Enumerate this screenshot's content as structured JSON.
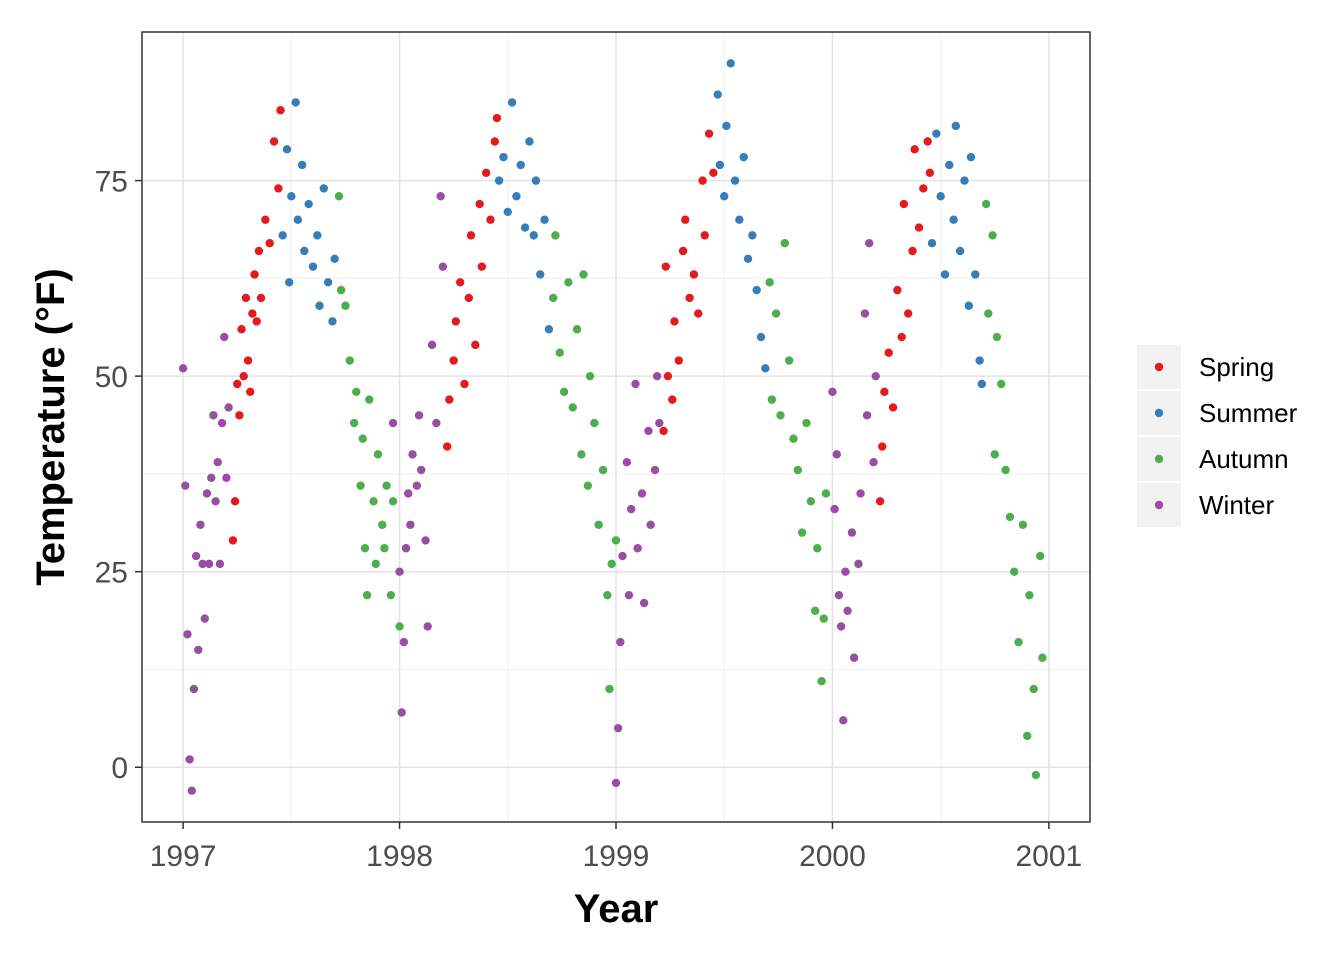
{
  "chart_data": {
    "type": "scatter",
    "title": "",
    "xlabel": "Year",
    "ylabel": "Temperature (°F)",
    "xlim": [
      1996.81,
      2001.19
    ],
    "ylim": [
      -7,
      94
    ],
    "xticks": [
      1997,
      1998,
      1999,
      2000,
      2001
    ],
    "xtick_labels": [
      "1997",
      "1998",
      "1999",
      "2000",
      "2001"
    ],
    "yticks": [
      0,
      25,
      50,
      75
    ],
    "ytick_labels": [
      "0",
      "25",
      "50",
      "75"
    ],
    "grid": true,
    "legend_position": "right",
    "series": [
      {
        "name": "Spring",
        "color": "#E41A1C",
        "points": [
          [
            1997.23,
            29
          ],
          [
            1997.24,
            34
          ],
          [
            1997.25,
            49
          ],
          [
            1997.26,
            45
          ],
          [
            1997.27,
            56
          ],
          [
            1997.28,
            50
          ],
          [
            1997.29,
            60
          ],
          [
            1997.3,
            52
          ],
          [
            1997.31,
            48
          ],
          [
            1997.32,
            58
          ],
          [
            1997.33,
            63
          ],
          [
            1997.34,
            57
          ],
          [
            1997.35,
            66
          ],
          [
            1997.36,
            60
          ],
          [
            1997.38,
            70
          ],
          [
            1997.4,
            67
          ],
          [
            1997.42,
            80
          ],
          [
            1997.44,
            74
          ],
          [
            1997.45,
            84
          ],
          [
            1998.22,
            41
          ],
          [
            1998.23,
            47
          ],
          [
            1998.25,
            52
          ],
          [
            1998.26,
            57
          ],
          [
            1998.28,
            62
          ],
          [
            1998.3,
            49
          ],
          [
            1998.32,
            60
          ],
          [
            1998.33,
            68
          ],
          [
            1998.35,
            54
          ],
          [
            1998.37,
            72
          ],
          [
            1998.38,
            64
          ],
          [
            1998.4,
            76
          ],
          [
            1998.42,
            70
          ],
          [
            1998.44,
            80
          ],
          [
            1998.45,
            83
          ],
          [
            1999.22,
            43
          ],
          [
            1999.23,
            64
          ],
          [
            1999.24,
            50
          ],
          [
            1999.26,
            47
          ],
          [
            1999.27,
            57
          ],
          [
            1999.29,
            52
          ],
          [
            1999.31,
            66
          ],
          [
            1999.32,
            70
          ],
          [
            1999.34,
            60
          ],
          [
            1999.36,
            63
          ],
          [
            1999.38,
            58
          ],
          [
            1999.4,
            75
          ],
          [
            1999.41,
            68
          ],
          [
            1999.43,
            81
          ],
          [
            1999.45,
            76
          ],
          [
            2000.22,
            34
          ],
          [
            2000.23,
            41
          ],
          [
            2000.24,
            48
          ],
          [
            2000.26,
            53
          ],
          [
            2000.28,
            46
          ],
          [
            2000.3,
            61
          ],
          [
            2000.32,
            55
          ],
          [
            2000.33,
            72
          ],
          [
            2000.35,
            58
          ],
          [
            2000.37,
            66
          ],
          [
            2000.38,
            79
          ],
          [
            2000.4,
            69
          ],
          [
            2000.42,
            74
          ],
          [
            2000.44,
            80
          ],
          [
            2000.45,
            76
          ]
        ]
      },
      {
        "name": "Summer",
        "color": "#377EB8",
        "points": [
          [
            1997.46,
            68
          ],
          [
            1997.48,
            79
          ],
          [
            1997.49,
            62
          ],
          [
            1997.5,
            73
          ],
          [
            1997.52,
            85
          ],
          [
            1997.53,
            70
          ],
          [
            1997.55,
            77
          ],
          [
            1997.56,
            66
          ],
          [
            1997.58,
            72
          ],
          [
            1997.6,
            64
          ],
          [
            1997.62,
            68
          ],
          [
            1997.63,
            59
          ],
          [
            1997.65,
            74
          ],
          [
            1997.67,
            62
          ],
          [
            1997.69,
            57
          ],
          [
            1997.7,
            65
          ],
          [
            1998.46,
            75
          ],
          [
            1998.48,
            78
          ],
          [
            1998.5,
            71
          ],
          [
            1998.52,
            85
          ],
          [
            1998.54,
            73
          ],
          [
            1998.56,
            77
          ],
          [
            1998.58,
            69
          ],
          [
            1998.6,
            80
          ],
          [
            1998.62,
            68
          ],
          [
            1998.63,
            75
          ],
          [
            1998.65,
            63
          ],
          [
            1998.67,
            70
          ],
          [
            1998.69,
            56
          ],
          [
            1999.47,
            86
          ],
          [
            1999.48,
            77
          ],
          [
            1999.5,
            73
          ],
          [
            1999.51,
            82
          ],
          [
            1999.53,
            90
          ],
          [
            1999.55,
            75
          ],
          [
            1999.57,
            70
          ],
          [
            1999.59,
            78
          ],
          [
            1999.61,
            65
          ],
          [
            1999.63,
            68
          ],
          [
            1999.65,
            61
          ],
          [
            1999.67,
            55
          ],
          [
            1999.69,
            51
          ],
          [
            2000.46,
            67
          ],
          [
            2000.48,
            81
          ],
          [
            2000.5,
            73
          ],
          [
            2000.52,
            63
          ],
          [
            2000.54,
            77
          ],
          [
            2000.56,
            70
          ],
          [
            2000.57,
            82
          ],
          [
            2000.59,
            66
          ],
          [
            2000.61,
            75
          ],
          [
            2000.63,
            59
          ],
          [
            2000.64,
            78
          ],
          [
            2000.66,
            63
          ],
          [
            2000.68,
            52
          ],
          [
            2000.69,
            49
          ]
        ]
      },
      {
        "name": "Autumn",
        "color": "#4DAF4A",
        "points": [
          [
            1997.72,
            73
          ],
          [
            1997.73,
            61
          ],
          [
            1997.75,
            59
          ],
          [
            1997.77,
            52
          ],
          [
            1997.79,
            44
          ],
          [
            1997.8,
            48
          ],
          [
            1997.82,
            36
          ],
          [
            1997.83,
            42
          ],
          [
            1997.84,
            28
          ],
          [
            1997.85,
            22
          ],
          [
            1997.86,
            47
          ],
          [
            1997.88,
            34
          ],
          [
            1997.89,
            26
          ],
          [
            1997.9,
            40
          ],
          [
            1997.92,
            31
          ],
          [
            1997.93,
            28
          ],
          [
            1997.94,
            36
          ],
          [
            1997.96,
            22
          ],
          [
            1997.97,
            34
          ],
          [
            1998.0,
            18
          ],
          [
            1998.71,
            60
          ],
          [
            1998.72,
            68
          ],
          [
            1998.74,
            53
          ],
          [
            1998.76,
            48
          ],
          [
            1998.78,
            62
          ],
          [
            1998.8,
            46
          ],
          [
            1998.82,
            56
          ],
          [
            1998.84,
            40
          ],
          [
            1998.85,
            63
          ],
          [
            1998.87,
            36
          ],
          [
            1998.88,
            50
          ],
          [
            1998.9,
            44
          ],
          [
            1998.92,
            31
          ],
          [
            1998.94,
            38
          ],
          [
            1998.96,
            22
          ],
          [
            1998.97,
            10
          ],
          [
            1998.98,
            26
          ],
          [
            1999.0,
            29
          ],
          [
            1999.71,
            62
          ],
          [
            1999.72,
            47
          ],
          [
            1999.74,
            58
          ],
          [
            1999.76,
            45
          ],
          [
            1999.78,
            67
          ],
          [
            1999.8,
            52
          ],
          [
            1999.82,
            42
          ],
          [
            1999.84,
            38
          ],
          [
            1999.86,
            30
          ],
          [
            1999.88,
            44
          ],
          [
            1999.9,
            34
          ],
          [
            1999.92,
            20
          ],
          [
            1999.93,
            28
          ],
          [
            1999.95,
            11
          ],
          [
            1999.96,
            19
          ],
          [
            1999.97,
            35
          ],
          [
            2000.71,
            72
          ],
          [
            2000.72,
            58
          ],
          [
            2000.74,
            68
          ],
          [
            2000.75,
            40
          ],
          [
            2000.76,
            55
          ],
          [
            2000.78,
            49
          ],
          [
            2000.8,
            38
          ],
          [
            2000.82,
            32
          ],
          [
            2000.84,
            25
          ],
          [
            2000.86,
            16
          ],
          [
            2000.88,
            31
          ],
          [
            2000.9,
            4
          ],
          [
            2000.91,
            22
          ],
          [
            2000.93,
            10
          ],
          [
            2000.94,
            -1
          ],
          [
            2000.96,
            27
          ],
          [
            2000.97,
            14
          ]
        ]
      },
      {
        "name": "Winter",
        "color": "#984EA3",
        "points": [
          [
            1997.0,
            51
          ],
          [
            1997.01,
            36
          ],
          [
            1997.02,
            17
          ],
          [
            1997.03,
            1
          ],
          [
            1997.04,
            -3
          ],
          [
            1997.05,
            10
          ],
          [
            1997.06,
            27
          ],
          [
            1997.07,
            15
          ],
          [
            1997.08,
            31
          ],
          [
            1997.09,
            26
          ],
          [
            1997.1,
            19
          ],
          [
            1997.11,
            35
          ],
          [
            1997.12,
            26
          ],
          [
            1997.13,
            37
          ],
          [
            1997.14,
            45
          ],
          [
            1997.15,
            34
          ],
          [
            1997.16,
            39
          ],
          [
            1997.17,
            26
          ],
          [
            1997.18,
            44
          ],
          [
            1997.19,
            55
          ],
          [
            1997.2,
            37
          ],
          [
            1997.21,
            46
          ],
          [
            1997.97,
            44
          ],
          [
            1998.0,
            25
          ],
          [
            1998.01,
            7
          ],
          [
            1998.02,
            16
          ],
          [
            1998.03,
            28
          ],
          [
            1998.04,
            35
          ],
          [
            1998.05,
            31
          ],
          [
            1998.06,
            40
          ],
          [
            1998.08,
            36
          ],
          [
            1998.09,
            45
          ],
          [
            1998.1,
            38
          ],
          [
            1998.12,
            29
          ],
          [
            1998.13,
            18
          ],
          [
            1998.15,
            54
          ],
          [
            1998.17,
            44
          ],
          [
            1998.19,
            73
          ],
          [
            1998.2,
            64
          ],
          [
            1999.0,
            -2
          ],
          [
            1999.01,
            5
          ],
          [
            1999.02,
            16
          ],
          [
            1999.03,
            27
          ],
          [
            1999.05,
            39
          ],
          [
            1999.06,
            22
          ],
          [
            1999.07,
            33
          ],
          [
            1999.09,
            49
          ],
          [
            1999.1,
            28
          ],
          [
            1999.12,
            35
          ],
          [
            1999.13,
            21
          ],
          [
            1999.15,
            43
          ],
          [
            1999.16,
            31
          ],
          [
            1999.18,
            38
          ],
          [
            1999.19,
            50
          ],
          [
            1999.2,
            44
          ],
          [
            2000.0,
            48
          ],
          [
            2000.01,
            33
          ],
          [
            2000.02,
            40
          ],
          [
            2000.03,
            22
          ],
          [
            2000.04,
            18
          ],
          [
            2000.05,
            6
          ],
          [
            2000.06,
            25
          ],
          [
            2000.07,
            20
          ],
          [
            2000.09,
            30
          ],
          [
            2000.1,
            14
          ],
          [
            2000.12,
            26
          ],
          [
            2000.13,
            35
          ],
          [
            2000.15,
            58
          ],
          [
            2000.16,
            45
          ],
          [
            2000.17,
            67
          ],
          [
            2000.19,
            39
          ],
          [
            2000.2,
            50
          ]
        ]
      }
    ]
  }
}
